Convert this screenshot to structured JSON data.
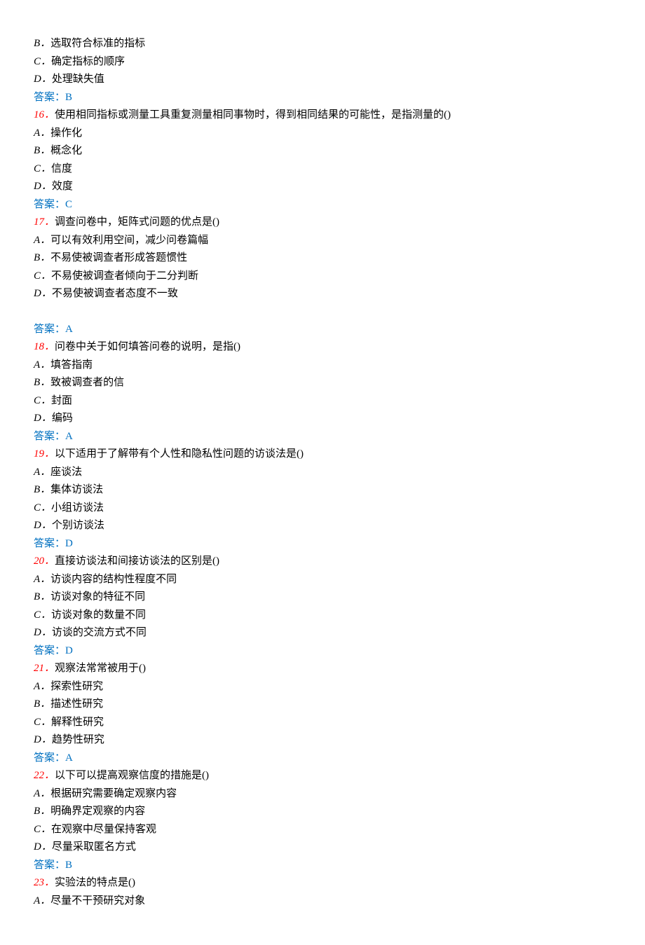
{
  "fragmentOptions": [
    {
      "label": "B",
      "text": "选取符合标准的指标"
    },
    {
      "label": "C",
      "text": "确定指标的顺序"
    },
    {
      "label": "D",
      "text": "处理缺失值"
    }
  ],
  "fragmentAnswerPrefix": "答案：",
  "fragmentAnswerValue": "B",
  "questions": [
    {
      "num": "16",
      "stem": "使用相同指标或测量工具重复测量相同事物时，得到相同结果的可能性，是指测量的()",
      "options": [
        {
          "label": "A",
          "text": "操作化"
        },
        {
          "label": "B",
          "text": "概念化"
        },
        {
          "label": "C",
          "text": "信度"
        },
        {
          "label": "D",
          "text": "效度"
        }
      ],
      "answerPrefix": "答案：",
      "answerValue": "C",
      "blankAfter": false
    },
    {
      "num": "17",
      "stem": "调查问卷中，矩阵式问题的优点是()",
      "options": [
        {
          "label": "A",
          "text": "可以有效利用空间，减少问卷篇幅"
        },
        {
          "label": "B",
          "text": "不易使被调查者形成答题惯性"
        },
        {
          "label": "C",
          "text": "不易使被调查者倾向于二分判断"
        },
        {
          "label": "D",
          "text": "不易使被调查者态度不一致"
        }
      ],
      "answerPrefix": "答案：",
      "answerValue": "A",
      "blankAfter": true
    },
    {
      "num": "18",
      "stem": "问卷中关于如何填答问卷的说明，是指()",
      "options": [
        {
          "label": "A",
          "text": "填答指南"
        },
        {
          "label": "B",
          "text": "致被调查者的信"
        },
        {
          "label": "C",
          "text": "封面"
        },
        {
          "label": "D",
          "text": "编码"
        }
      ],
      "answerPrefix": "答案：",
      "answerValue": "A",
      "blankAfter": false
    },
    {
      "num": "19",
      "stem": "以下适用于了解带有个人性和隐私性问题的访谈法是()",
      "options": [
        {
          "label": "A",
          "text": "座谈法"
        },
        {
          "label": "B",
          "text": "集体访谈法"
        },
        {
          "label": "C",
          "text": "小组访谈法"
        },
        {
          "label": "D",
          "text": "个别访谈法"
        }
      ],
      "answerPrefix": "答案：",
      "answerValue": "D",
      "blankAfter": false
    },
    {
      "num": "20",
      "stem": "直接访谈法和间接访谈法的区别是()",
      "options": [
        {
          "label": "A",
          "text": "访谈内容的结构性程度不同"
        },
        {
          "label": "B",
          "text": "访谈对象的特征不同"
        },
        {
          "label": "C",
          "text": "访谈对象的数量不同"
        },
        {
          "label": "D",
          "text": "访谈的交流方式不同"
        }
      ],
      "answerPrefix": "答案：",
      "answerValue": "D",
      "blankAfter": false
    },
    {
      "num": "21",
      "stem": "观察法常常被用于()",
      "options": [
        {
          "label": "A",
          "text": "探索性研究"
        },
        {
          "label": "B",
          "text": "描述性研究"
        },
        {
          "label": "C",
          "text": "解释性研究"
        },
        {
          "label": "D",
          "text": "趋势性研究"
        }
      ],
      "answerPrefix": "答案：",
      "answerValue": "A",
      "blankAfter": false
    },
    {
      "num": "22",
      "stem": "以下可以提高观察信度的措施是()",
      "options": [
        {
          "label": "A",
          "text": "根据研究需要确定观察内容"
        },
        {
          "label": "B",
          "text": "明确界定观察的内容"
        },
        {
          "label": "C",
          "text": "在观察中尽量保持客观"
        },
        {
          "label": "D",
          "text": "尽量采取匿名方式"
        }
      ],
      "answerPrefix": "答案：",
      "answerValue": "B",
      "blankAfter": false
    },
    {
      "num": "23",
      "stem": "实验法的特点是()",
      "options": [
        {
          "label": "A",
          "text": "尽量不干预研究对象"
        }
      ],
      "answerPrefix": "",
      "answerValue": "",
      "blankAfter": false
    }
  ],
  "separators": {
    "optionDot": "．",
    "questionDot": "．"
  }
}
